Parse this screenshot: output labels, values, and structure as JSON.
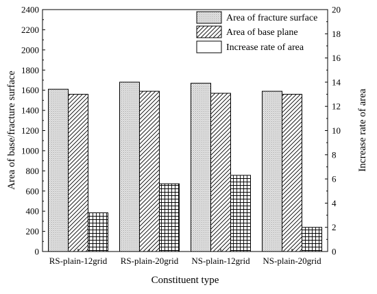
{
  "chart_data": {
    "type": "bar",
    "categories": [
      "RS-plain-12grid",
      "RS-plain-20grid",
      "NS-plain-12grid",
      "NS-plain-20grid"
    ],
    "series": [
      {
        "name": "Area of fracture surface",
        "axis": "left",
        "pattern": "dots",
        "values": [
          1610,
          1680,
          1670,
          1590
        ]
      },
      {
        "name": "Area of base plane",
        "axis": "left",
        "pattern": "diagonal-hatch",
        "values": [
          1560,
          1590,
          1570,
          1560
        ]
      },
      {
        "name": "Increase rate of area",
        "axis": "right",
        "pattern": "grid-hatch",
        "values": [
          3.2,
          5.6,
          6.3,
          2.0
        ]
      }
    ],
    "xlabel": "Constituent type",
    "ylabel": "Area of base/fracture surface",
    "y2label": "Increase rate of area",
    "ylim": [
      0,
      2400
    ],
    "yticks": [
      0,
      200,
      400,
      600,
      800,
      1000,
      1200,
      1400,
      1600,
      1800,
      2000,
      2200,
      2400
    ],
    "y2lim": [
      0,
      20
    ],
    "y2ticks": [
      0,
      2,
      4,
      6,
      8,
      10,
      12,
      14,
      16,
      18,
      20
    ],
    "grid": false,
    "legend": "top-right"
  }
}
